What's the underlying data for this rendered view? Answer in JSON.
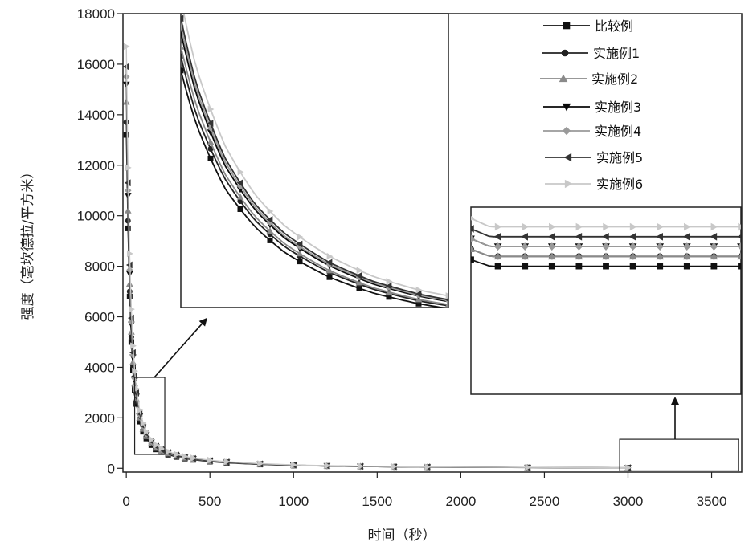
{
  "chart_data": {
    "type": "line",
    "title": "",
    "xlabel": "时间（秒）",
    "ylabel": "强度（毫坎德拉/平方米）",
    "xlim": [
      -20,
      3680
    ],
    "ylim": [
      -150,
      18000
    ],
    "x_ticks": [
      0,
      500,
      1000,
      1500,
      2000,
      2500,
      3000,
      3500
    ],
    "y_ticks": [
      0,
      2000,
      4000,
      6000,
      8000,
      10000,
      12000,
      14000,
      16000,
      18000
    ],
    "grid": false,
    "legend_position": "top-right",
    "x": [
      0,
      10,
      20,
      30,
      40,
      50,
      60,
      80,
      100,
      120,
      150,
      180,
      210,
      250,
      300,
      350,
      400,
      500,
      600,
      800,
      1000,
      1200,
      1400,
      1600,
      1800,
      2400,
      3000
    ],
    "series": [
      {
        "name": "比较例",
        "marker": "square",
        "color": "#111111",
        "values": [
          13200,
          9500,
          6800,
          5000,
          3900,
          3100,
          2550,
          1850,
          1450,
          1180,
          920,
          750,
          640,
          540,
          450,
          385,
          335,
          265,
          215,
          150,
          110,
          85,
          68,
          55,
          45,
          28,
          18
        ]
      },
      {
        "name": "实施例1",
        "marker": "circle",
        "color": "#222222",
        "values": [
          13700,
          9800,
          7000,
          5200,
          4050,
          3250,
          2650,
          1950,
          1520,
          1240,
          970,
          790,
          670,
          570,
          475,
          405,
          352,
          278,
          226,
          158,
          116,
          89,
          71,
          58,
          47,
          30,
          19
        ]
      },
      {
        "name": "实施例2",
        "marker": "triangle-up",
        "color": "#8a8a8a",
        "values": [
          14500,
          10200,
          7300,
          5400,
          4200,
          3350,
          2750,
          2000,
          1560,
          1270,
          990,
          805,
          685,
          580,
          482,
          410,
          356,
          281,
          228,
          159,
          117,
          90,
          72,
          58,
          48,
          30,
          19
        ]
      },
      {
        "name": "实施例3",
        "marker": "triangle-down",
        "color": "#0a0a0a",
        "values": [
          15200,
          10800,
          7700,
          5700,
          4400,
          3500,
          2870,
          2090,
          1630,
          1330,
          1040,
          845,
          720,
          610,
          508,
          432,
          375,
          296,
          240,
          168,
          123,
          95,
          76,
          62,
          50,
          32,
          20
        ]
      },
      {
        "name": "实施例4",
        "marker": "diamond",
        "color": "#9a9a9a",
        "values": [
          15500,
          11000,
          7850,
          5800,
          4480,
          3570,
          2920,
          2130,
          1660,
          1350,
          1055,
          858,
          730,
          618,
          514,
          437,
          380,
          300,
          243,
          170,
          125,
          96,
          77,
          62,
          51,
          32,
          20
        ]
      },
      {
        "name": "实施例5",
        "marker": "triangle-left",
        "color": "#333333",
        "values": [
          15900,
          11300,
          8050,
          5950,
          4580,
          3650,
          2980,
          2170,
          1690,
          1380,
          1075,
          873,
          742,
          628,
          522,
          444,
          386,
          305,
          247,
          173,
          127,
          98,
          78,
          63,
          52,
          33,
          21
        ]
      },
      {
        "name": "实施例6",
        "marker": "triangle-right",
        "color": "#c8c8c8",
        "values": [
          16700,
          11900,
          8500,
          6300,
          4850,
          3850,
          3150,
          2300,
          1790,
          1460,
          1140,
          925,
          785,
          665,
          553,
          470,
          408,
          322,
          261,
          183,
          134,
          103,
          82,
          67,
          55,
          35,
          22
        ]
      }
    ],
    "zoom_insets": [
      {
        "source_x": [
          50,
          230
        ],
        "source_y": [
          550,
          3600
        ],
        "position": "upper-center",
        "x_range": [
          50,
          230
        ],
        "y_range": [
          600,
          3700
        ]
      },
      {
        "source_x": [
          2950,
          3660
        ],
        "source_y": [
          -100,
          1150
        ],
        "position": "right",
        "x_range": [
          2950,
          3660
        ],
        "y_range": [
          5,
          24
        ]
      }
    ]
  }
}
